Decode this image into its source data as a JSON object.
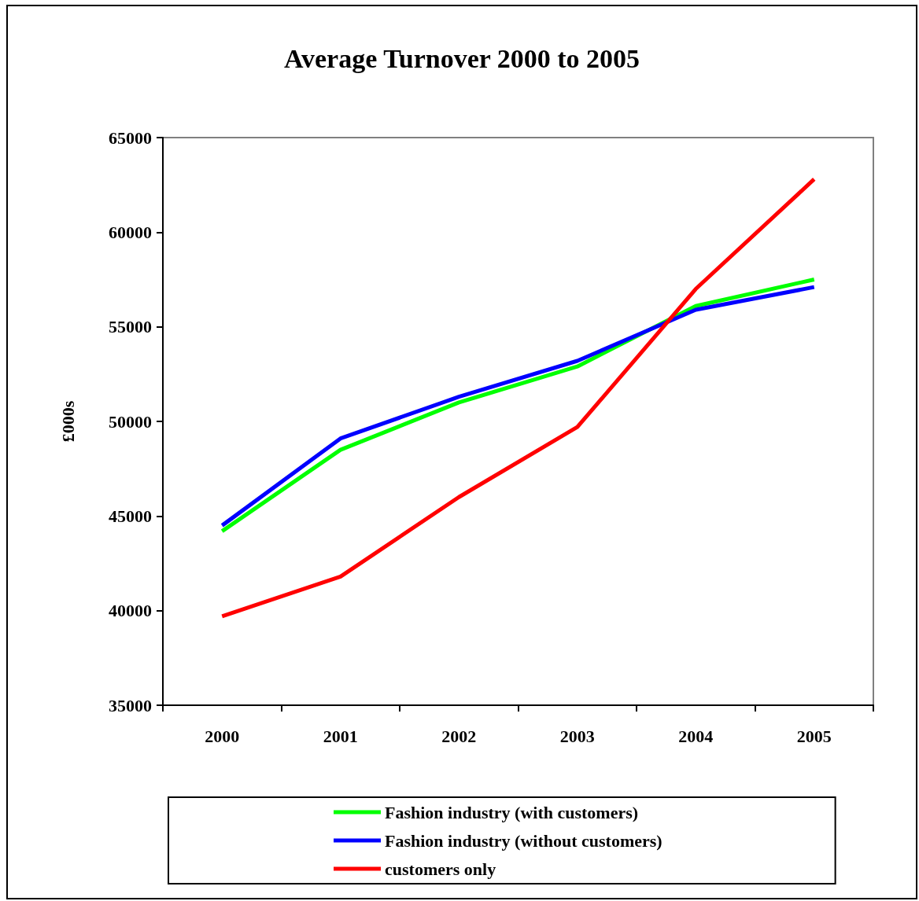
{
  "chart_data": {
    "type": "line",
    "title": "Average Turnover 2000 to 2005",
    "ylabel": "£000s",
    "categories": [
      "2000",
      "2001",
      "2002",
      "2003",
      "2004",
      "2005"
    ],
    "series": [
      {
        "name": "Fashion industry (with customers)",
        "color": "#00ff00",
        "values": [
          44200,
          48500,
          51000,
          52900,
          56100,
          57500
        ]
      },
      {
        "name": "Fashion industry (without customers)",
        "color": "#0000ff",
        "values": [
          44500,
          49100,
          51300,
          53200,
          55900,
          57100
        ]
      },
      {
        "name": "customers only",
        "color": "#ff0000",
        "values": [
          39700,
          41800,
          46000,
          49700,
          57000,
          62800
        ]
      }
    ],
    "ylim": [
      35000,
      65000
    ],
    "yticks": [
      35000,
      40000,
      45000,
      50000,
      55000,
      60000,
      65000
    ],
    "grid": false,
    "legend": "bottom",
    "marker": "none",
    "line_style": "solid"
  }
}
